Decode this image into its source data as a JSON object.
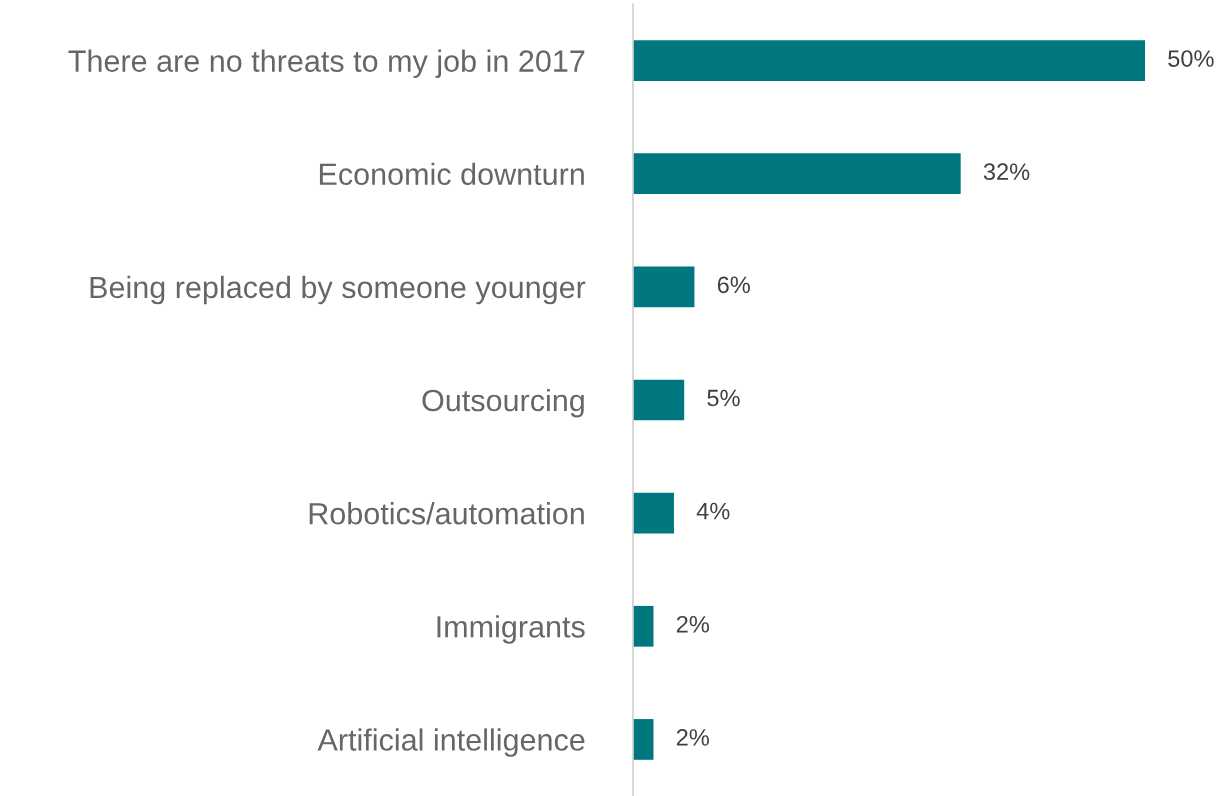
{
  "chart_data": {
    "type": "bar",
    "orientation": "horizontal",
    "categories": [
      "There are no threats to my job in 2017",
      "Economic downturn",
      "Being replaced by someone younger",
      "Outsourcing",
      "Robotics/automation",
      "Immigrants",
      "Artificial intelligence"
    ],
    "values": [
      50,
      32,
      6,
      5,
      4,
      2,
      2
    ],
    "value_labels": [
      "50%",
      "32%",
      "6%",
      "5%",
      "4%",
      "2%",
      "2%"
    ],
    "color": "#00767e",
    "xlim": [
      0,
      50
    ],
    "tick_labels": "y",
    "grid": false,
    "legend": false
  }
}
